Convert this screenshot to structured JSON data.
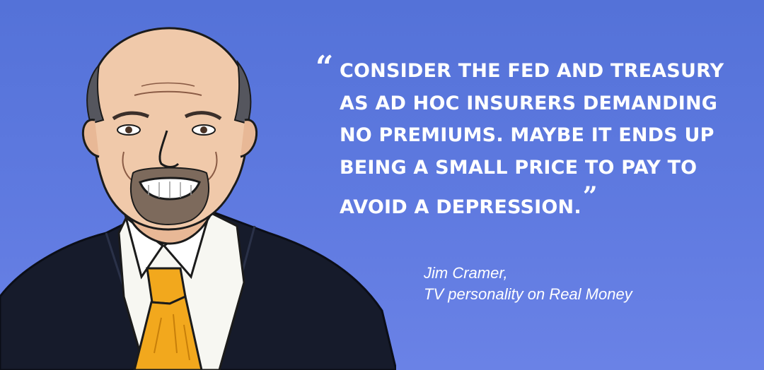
{
  "quote": {
    "lines": [
      "CONSIDER THE FED AND TREASURY",
      "AS AD HOC INSURERS DEMANDING",
      "NO PREMIUMS. MAYBE IT ENDS UP",
      "BEING A SMALL PRICE TO PAY TO",
      "AVOID A DEPRESSION."
    ],
    "open_mark": "“",
    "close_mark": "”"
  },
  "attribution": {
    "name": "Jim Cramer,",
    "title": "TV personality on Real Money"
  },
  "colors": {
    "background": "#5b76dc",
    "text": "#ffffff",
    "suit": "#161b2b",
    "tie": "#f2a81d",
    "shirt": "#f7f7f2",
    "skin": "#f0c9aa"
  },
  "icons": {
    "portrait": "man-portrait-illustration-icon"
  }
}
